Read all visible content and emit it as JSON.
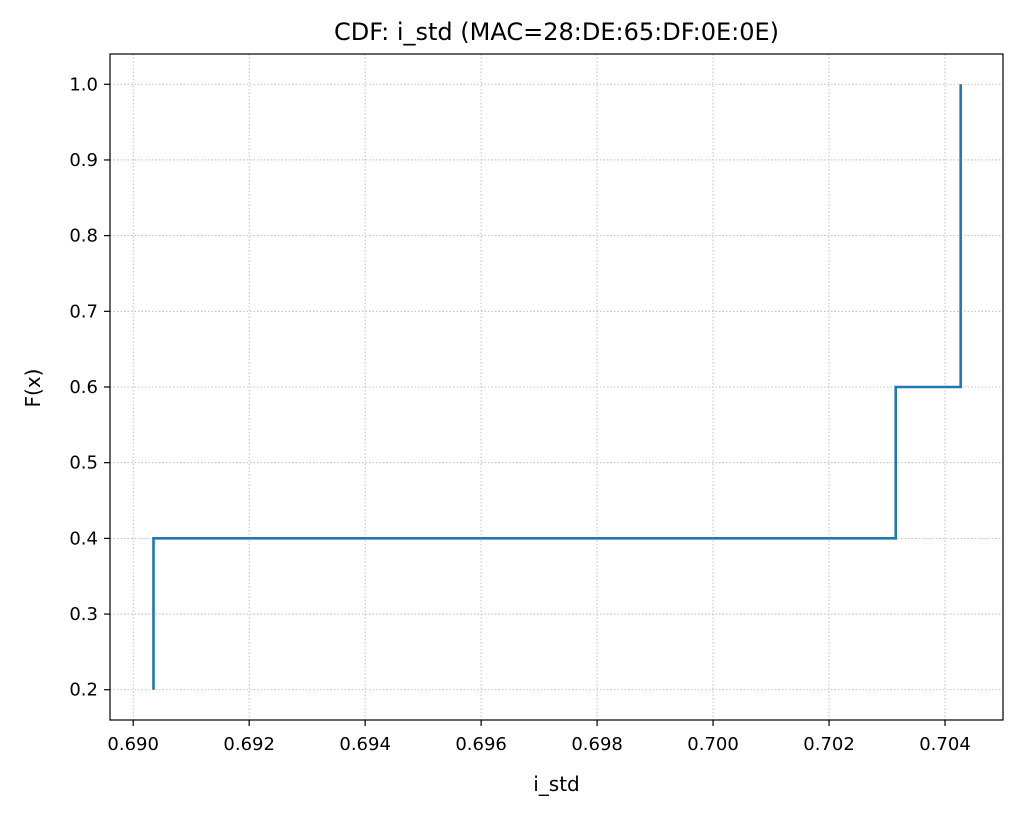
{
  "chart_data": {
    "type": "line",
    "drawstyle": "steps-post",
    "title": "CDF: i_std (MAC=28:DE:65:DF:0E:0E)",
    "xlabel": "i_std",
    "ylabel": "F(x)",
    "xlim": [
      0.6896,
      0.705
    ],
    "ylim": [
      0.16,
      1.04
    ],
    "xticks": [
      0.69,
      0.692,
      0.694,
      0.696,
      0.698,
      0.7,
      0.702,
      0.704
    ],
    "xtick_labels": [
      "0.690",
      "0.692",
      "0.694",
      "0.696",
      "0.698",
      "0.700",
      "0.702",
      "0.704"
    ],
    "yticks": [
      0.2,
      0.3,
      0.4,
      0.5,
      0.6,
      0.7,
      0.8,
      0.9,
      1.0
    ],
    "ytick_labels": [
      "0.2",
      "0.3",
      "0.4",
      "0.5",
      "0.6",
      "0.7",
      "0.8",
      "0.9",
      "1.0"
    ],
    "grid": true,
    "series": [
      {
        "color": "#1f77b4",
        "x": [
          0.69035,
          0.69035,
          0.70315,
          0.70315,
          0.70427,
          0.70427
        ],
        "y": [
          0.2,
          0.4,
          0.4,
          0.6,
          0.6,
          1.0
        ]
      }
    ]
  }
}
